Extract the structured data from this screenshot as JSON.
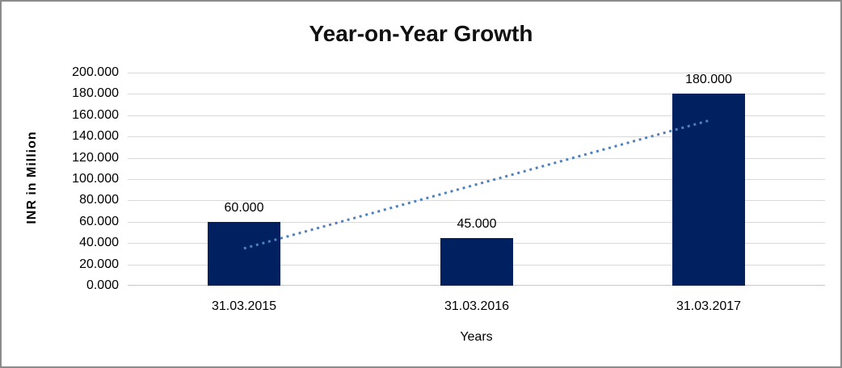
{
  "chart_data": {
    "type": "bar",
    "title": "Year-on-Year Growth",
    "xlabel": "Years",
    "ylabel": "INR in Million",
    "categories": [
      "31.03.2015",
      "31.03.2016",
      "31.03.2017"
    ],
    "series": [
      {
        "name": "INR in Million",
        "type": "bar",
        "values": [
          60,
          45,
          180
        ],
        "labels": [
          "60.000",
          "45.000",
          "180.000"
        ],
        "color": "#002060"
      },
      {
        "name": "linear-trendline",
        "type": "line",
        "style": "dotted",
        "values": [
          35,
          95,
          155
        ],
        "color": "#4f81bd"
      }
    ],
    "ylim": [
      0,
      200
    ],
    "ytick_step": 20,
    "ytick_labels": [
      "0.000",
      "20.000",
      "40.000",
      "60.000",
      "80.000",
      "100.000",
      "120.000",
      "140.000",
      "160.000",
      "180.000",
      "200.000"
    ],
    "grid": true,
    "legend": false
  },
  "colors": {
    "bar": "#002060",
    "trendline": "#4f81bd",
    "gridline": "#d9d9d9",
    "frame_border": "#8c8c8c",
    "text": "#000000"
  }
}
